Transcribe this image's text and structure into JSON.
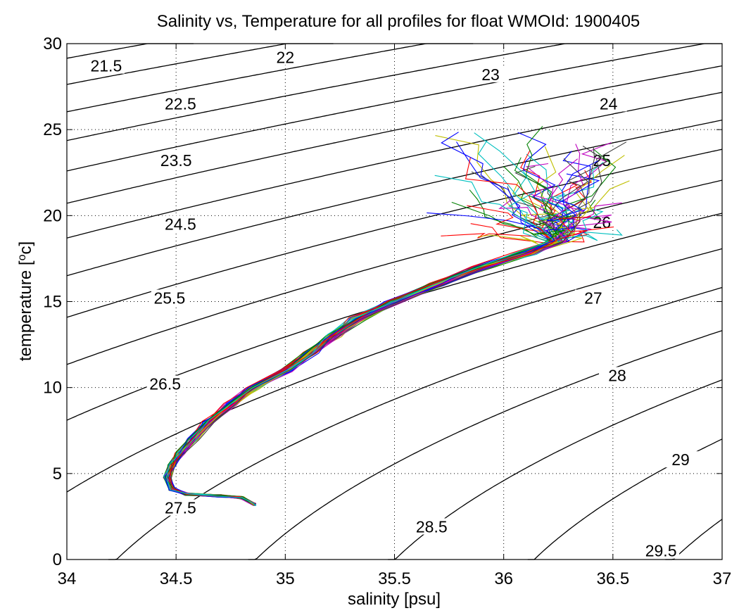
{
  "chart_data": {
    "type": "line",
    "title": "Salinity vs, Temperature for all profiles for float WMOId: 1900405",
    "xlabel": "salinity [psu]",
    "ylabel_main": "temperature [",
    "ylabel_sup": "o",
    "ylabel_tail": "c]",
    "xlim": [
      34,
      37
    ],
    "ylim": [
      0,
      30
    ],
    "x_ticks": [
      "34",
      "34.5",
      "35",
      "35.5",
      "36",
      "36.5",
      "37"
    ],
    "y_ticks": [
      "0",
      "5",
      "10",
      "15",
      "20",
      "25",
      "30"
    ],
    "grid": true,
    "density_contours": {
      "levels": [
        21.5,
        22,
        22.5,
        23,
        23.5,
        24,
        24.5,
        25,
        25.5,
        26,
        26.5,
        27,
        27.5,
        28,
        28.5,
        29,
        29.5
      ],
      "labels": [
        {
          "text": "21.5",
          "s": 34.18,
          "t": 28.5
        },
        {
          "text": "22",
          "s": 35.0,
          "t": 29.0
        },
        {
          "text": "22.5",
          "s": 34.52,
          "t": 26.3
        },
        {
          "text": "23",
          "s": 35.94,
          "t": 28.0
        },
        {
          "text": "23.5",
          "s": 34.5,
          "t": 23.0
        },
        {
          "text": "24",
          "s": 36.48,
          "t": 26.3
        },
        {
          "text": "24.5",
          "s": 34.52,
          "t": 19.3
        },
        {
          "text": "25",
          "s": 36.45,
          "t": 23.0
        },
        {
          "text": "25.5",
          "s": 34.47,
          "t": 15.0
        },
        {
          "text": "26",
          "s": 36.45,
          "t": 19.4
        },
        {
          "text": "26.5",
          "s": 34.45,
          "t": 10.0
        },
        {
          "text": "27",
          "s": 36.41,
          "t": 15.0
        },
        {
          "text": "27.5",
          "s": 34.52,
          "t": 2.8
        },
        {
          "text": "28",
          "s": 36.52,
          "t": 10.5
        },
        {
          "text": "28.5",
          "s": 35.67,
          "t": 1.7
        },
        {
          "text": "29",
          "s": 36.81,
          "t": 5.6
        },
        {
          "text": "29.5",
          "s": 36.72,
          "t": 0.3
        }
      ]
    },
    "profiles": {
      "count": 60,
      "colors": [
        "#0000ff",
        "#008000",
        "#ff0000",
        "#00bfbf",
        "#bf00bf",
        "#bfbf00",
        "#404040"
      ],
      "mean_ts_curve": [
        [
          34.86,
          3.2
        ],
        [
          34.8,
          3.6
        ],
        [
          34.7,
          3.7
        ],
        [
          34.55,
          3.8
        ],
        [
          34.48,
          4.1
        ],
        [
          34.46,
          4.8
        ],
        [
          34.48,
          5.5
        ],
        [
          34.52,
          6.2
        ],
        [
          34.58,
          7.0
        ],
        [
          34.65,
          8.0
        ],
        [
          34.75,
          9.0
        ],
        [
          34.85,
          10.0
        ],
        [
          35.0,
          11.0
        ],
        [
          35.12,
          12.0
        ],
        [
          35.22,
          13.0
        ],
        [
          35.33,
          14.0
        ],
        [
          35.5,
          15.0
        ],
        [
          35.7,
          16.0
        ],
        [
          35.9,
          17.0
        ],
        [
          36.1,
          17.8
        ],
        [
          36.25,
          18.5
        ]
      ],
      "surface_spread": {
        "s_range": [
          35.7,
          36.6
        ],
        "t_range": [
          18.0,
          25.2
        ]
      }
    }
  }
}
